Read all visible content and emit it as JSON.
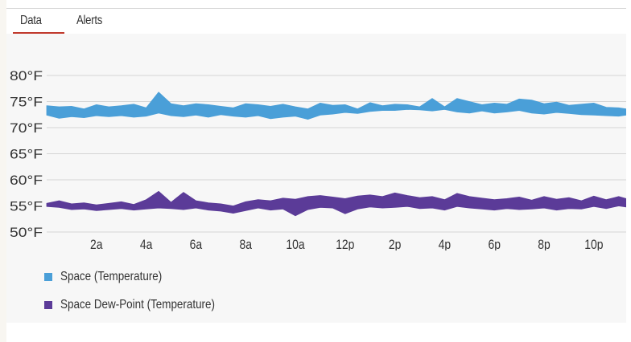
{
  "tabs": [
    {
      "label": "Data",
      "active": true
    },
    {
      "label": "Alerts",
      "active": false
    }
  ],
  "colors": {
    "accent": "#c0392b",
    "temperature": "#4a9fd8",
    "dew_point": "#5b3b98",
    "grid": "#d5d5d5",
    "background": "#f7f7f7"
  },
  "chart_data": {
    "type": "area",
    "title": "",
    "xlabel": "",
    "ylabel": "",
    "y_ticks": [
      "80°F",
      "75°F",
      "70°F",
      "65°F",
      "60°F",
      "55°F",
      "50°F"
    ],
    "y_tick_values": [
      80,
      75,
      70,
      65,
      60,
      55,
      50
    ],
    "ylim": [
      50,
      80
    ],
    "x_ticks": [
      "2a",
      "4a",
      "6a",
      "8a",
      "10a",
      "12p",
      "2p",
      "4p",
      "6p",
      "8p",
      "10p"
    ],
    "x_tick_hours": [
      2,
      4,
      6,
      8,
      10,
      12,
      14,
      16,
      18,
      20,
      22
    ],
    "xlim_hours": [
      0,
      23.3
    ],
    "grid": true,
    "legend_position": "bottom-left",
    "series": [
      {
        "name": "Space (Temperature)",
        "color": "#4a9fd8",
        "x_hours": [
          0,
          0.5,
          1,
          1.5,
          2,
          2.5,
          3,
          3.5,
          4,
          4.5,
          5,
          5.5,
          6,
          6.5,
          7,
          7.5,
          8,
          8.5,
          9,
          9.5,
          10,
          10.5,
          11,
          11.5,
          12,
          12.5,
          13,
          13.5,
          14,
          14.5,
          15,
          15.5,
          16,
          16.5,
          17,
          17.5,
          18,
          18.5,
          19,
          19.5,
          20,
          20.5,
          21,
          21.5,
          22,
          22.5,
          23,
          23.3
        ],
        "high": [
          74.2,
          74.0,
          74.1,
          73.6,
          74.4,
          74.0,
          74.2,
          74.5,
          73.8,
          76.8,
          74.6,
          74.2,
          74.6,
          74.4,
          74.1,
          73.8,
          74.6,
          74.4,
          74.1,
          74.5,
          74.0,
          73.6,
          74.7,
          74.3,
          74.4,
          73.6,
          74.8,
          74.2,
          74.5,
          74.4,
          74.0,
          75.6,
          74.0,
          75.6,
          75.0,
          74.4,
          74.7,
          74.5,
          75.5,
          75.3,
          74.6,
          74.9,
          74.3,
          74.5,
          74.7,
          73.9,
          73.8,
          73.6
        ],
        "low": [
          72.4,
          71.8,
          72.1,
          71.9,
          72.3,
          72.1,
          72.3,
          72.0,
          72.2,
          72.8,
          72.3,
          72.1,
          72.4,
          72.0,
          72.5,
          72.2,
          72.0,
          72.3,
          71.7,
          72.0,
          72.2,
          71.6,
          72.4,
          72.6,
          72.9,
          72.7,
          73.1,
          73.3,
          73.3,
          73.5,
          73.4,
          73.2,
          73.5,
          73.0,
          72.8,
          73.2,
          72.8,
          73.0,
          73.3,
          72.8,
          72.6,
          72.9,
          72.7,
          72.5,
          72.4,
          72.3,
          72.2,
          72.4
        ]
      },
      {
        "name": "Space Dew-Point (Temperature)",
        "color": "#5b3b98",
        "x_hours": [
          0,
          0.5,
          1,
          1.5,
          2,
          2.5,
          3,
          3.5,
          4,
          4.5,
          5,
          5.5,
          6,
          6.5,
          7,
          7.5,
          8,
          8.5,
          9,
          9.5,
          10,
          10.5,
          11,
          11.5,
          12,
          12.5,
          13,
          13.5,
          14,
          14.5,
          15,
          15.5,
          16,
          16.5,
          17,
          17.5,
          18,
          18.5,
          19,
          19.5,
          20,
          20.5,
          21,
          21.5,
          22,
          22.5,
          23,
          23.3
        ],
        "high": [
          55.5,
          56.0,
          55.4,
          55.6,
          55.2,
          55.5,
          55.8,
          55.3,
          56.2,
          57.8,
          55.7,
          57.6,
          56.0,
          55.6,
          55.4,
          55.0,
          55.8,
          56.2,
          56.0,
          56.5,
          56.3,
          56.8,
          57.0,
          56.7,
          56.4,
          56.9,
          57.1,
          56.8,
          57.5,
          57.0,
          56.6,
          56.8,
          56.2,
          57.4,
          56.8,
          56.5,
          56.2,
          56.4,
          56.7,
          56.1,
          56.8,
          56.3,
          56.6,
          56.0,
          56.9,
          56.2,
          56.8,
          56.4
        ],
        "low": [
          54.9,
          54.7,
          54.3,
          54.4,
          54.1,
          54.3,
          54.5,
          54.2,
          54.4,
          54.6,
          54.5,
          54.3,
          54.6,
          54.2,
          54.0,
          53.6,
          54.1,
          54.6,
          54.2,
          54.4,
          53.1,
          54.3,
          54.7,
          54.6,
          53.5,
          54.4,
          54.8,
          54.6,
          54.7,
          54.9,
          54.5,
          54.6,
          54.2,
          54.9,
          54.6,
          54.4,
          54.2,
          54.5,
          54.3,
          54.4,
          54.6,
          54.2,
          54.5,
          54.4,
          54.9,
          54.5,
          55.0,
          54.8
        ]
      }
    ]
  }
}
